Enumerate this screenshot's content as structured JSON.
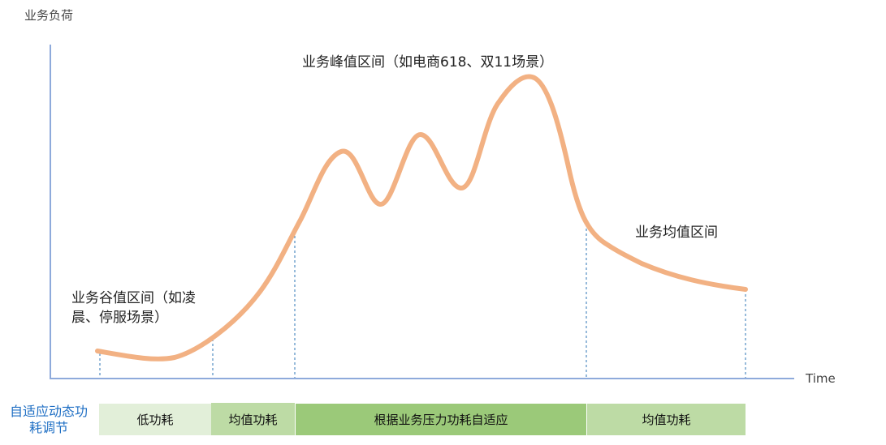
{
  "axes": {
    "y_label": "业务负荷",
    "x_label": "Time"
  },
  "annotations": {
    "peak": "业务峰值区间（如电商618、双11场景）",
    "average": "业务均值区间",
    "trough": "业务谷值区间（如凌晨、停服场景）"
  },
  "legend_side": "自适应动态功耗调节",
  "segments": [
    {
      "label": "低功耗",
      "color": "#e2efd9"
    },
    {
      "label": "均值功耗",
      "color": "#bddba5"
    },
    {
      "label": "根据业务压力功耗自适应",
      "color": "#9bc979"
    },
    {
      "label": "均值功耗",
      "color": "#bddba5"
    }
  ],
  "colors": {
    "curve": "#f2b183",
    "axis": "#8eaadb",
    "divider": "#2e75b6",
    "side_text": "#1f6fc4"
  }
}
